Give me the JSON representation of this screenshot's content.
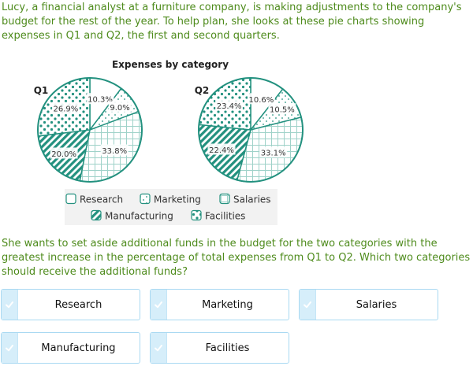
{
  "intro_text": "Lucy, a financial analyst at a furniture company, is making adjustments to the company's budget for the rest of the year. To help plan, she looks at these pie charts showing expenses in Q1 and Q2, the first and second quarters.",
  "prompt_text": "She wants to set aside additional funds in the budget for the two categories with the greatest increase in the percentage of total expenses from Q1 to Q2. Which two categories should receive the additional funds?",
  "chart_data": {
    "type": "pie",
    "title": "Expenses by category",
    "categories": [
      "Research",
      "Marketing",
      "Salaries",
      "Manufacturing",
      "Facilities"
    ],
    "series": [
      {
        "name": "Q1",
        "values": [
          10.3,
          9.0,
          33.8,
          20.0,
          26.9
        ],
        "labels": [
          "10.3%",
          "9.0%",
          "33.8%",
          "20.0%",
          "26.9%"
        ]
      },
      {
        "name": "Q2",
        "values": [
          10.6,
          10.5,
          33.1,
          22.4,
          23.4
        ],
        "labels": [
          "10.6%",
          "10.5%",
          "33.1%",
          "22.4%",
          "23.4%"
        ]
      }
    ],
    "legend": [
      "Research",
      "Marketing",
      "Salaries",
      "Manufacturing",
      "Facilities"
    ],
    "legend_position": "bottom",
    "colors": {
      "stroke": "#23917f",
      "light_fill": "#e6f4f2",
      "grid": "#b5ddd6"
    }
  },
  "choices": [
    "Research",
    "Marketing",
    "Salaries",
    "Manufacturing",
    "Facilities"
  ],
  "colors": {
    "text_green": "#4e8b1c",
    "choice_border": "#a9d9f2",
    "choice_tab": "#d6eefa"
  },
  "icons": {
    "choice": "checkmark-icon"
  }
}
